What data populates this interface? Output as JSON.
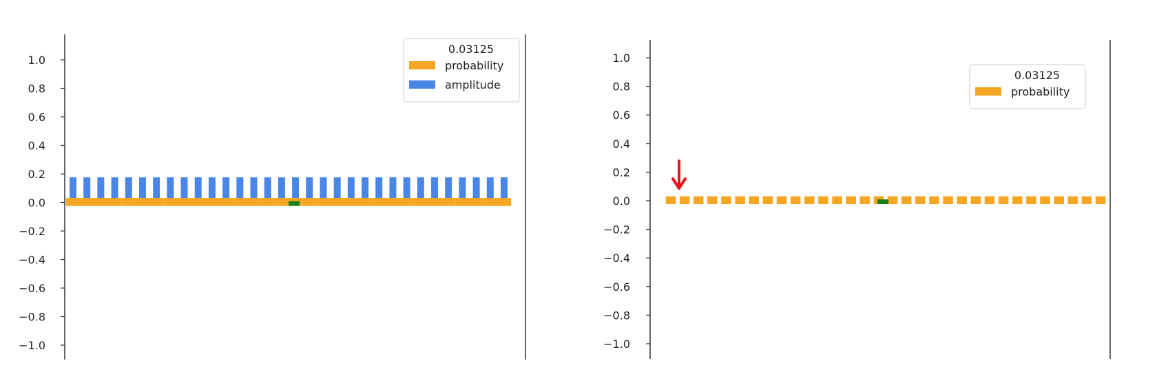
{
  "chart_data": [
    {
      "type": "bar",
      "n_states": 32,
      "ylim": [
        -1.1,
        1.1
      ],
      "yticks": [
        1.0,
        0.8,
        0.6,
        0.4,
        0.2,
        0.0,
        -0.2,
        -0.4,
        -0.6,
        -0.8,
        -1.0
      ],
      "ytick_labels": [
        "1.0",
        "0.8",
        "0.6",
        "0.4",
        "0.2",
        "0.0",
        "−0.2",
        "−0.4",
        "−0.6",
        "−0.8",
        "−1.0"
      ],
      "legend_title": "0.03125",
      "legend_position": "top-right",
      "marked_index": 16,
      "series": [
        {
          "name": "probability",
          "color": "#f5a623",
          "values": [
            0.03125,
            0.03125,
            0.03125,
            0.03125,
            0.03125,
            0.03125,
            0.03125,
            0.03125,
            0.03125,
            0.03125,
            0.03125,
            0.03125,
            0.03125,
            0.03125,
            0.03125,
            0.03125,
            0.03125,
            0.03125,
            0.03125,
            0.03125,
            0.03125,
            0.03125,
            0.03125,
            0.03125,
            0.03125,
            0.03125,
            0.03125,
            0.03125,
            0.03125,
            0.03125,
            0.03125,
            0.03125
          ]
        },
        {
          "name": "amplitude",
          "color": "#4a86e8",
          "values": [
            0.177,
            0.177,
            0.177,
            0.177,
            0.177,
            0.177,
            0.177,
            0.177,
            0.177,
            0.177,
            0.177,
            0.177,
            0.177,
            0.177,
            0.177,
            0.177,
            0.177,
            0.177,
            0.177,
            0.177,
            0.177,
            0.177,
            0.177,
            0.177,
            0.177,
            0.177,
            0.177,
            0.177,
            0.177,
            0.177,
            0.177,
            0.177
          ]
        }
      ],
      "marker_color": "#1a7f1a"
    },
    {
      "type": "bar",
      "n_states": 32,
      "ylim": [
        -1.1,
        1.1
      ],
      "yticks": [
        1.0,
        0.8,
        0.6,
        0.4,
        0.2,
        0.0,
        -0.2,
        -0.4,
        -0.6,
        -0.8,
        -1.0
      ],
      "ytick_labels": [
        "1.0",
        "0.8",
        "0.6",
        "0.4",
        "0.2",
        "0.0",
        "−0.2",
        "−0.4",
        "−0.6",
        "−0.8",
        "−1.0"
      ],
      "legend_title": "0.03125",
      "legend_position": "top-right",
      "marked_index": 16,
      "series": [
        {
          "name": "probability",
          "color": "#f5a623",
          "values": [
            0.03125,
            0.03125,
            0.03125,
            0.03125,
            0.03125,
            0.03125,
            0.03125,
            0.03125,
            0.03125,
            0.03125,
            0.03125,
            0.03125,
            0.03125,
            0.03125,
            0.03125,
            0.03125,
            0.03125,
            0.03125,
            0.03125,
            0.03125,
            0.03125,
            0.03125,
            0.03125,
            0.03125,
            0.03125,
            0.03125,
            0.03125,
            0.03125,
            0.03125,
            0.03125,
            0.03125,
            0.03125
          ]
        }
      ],
      "marker_color": "#1a7f1a",
      "annotation": {
        "type": "arrow",
        "color": "#e8141c",
        "points_to_index": 0
      }
    }
  ]
}
